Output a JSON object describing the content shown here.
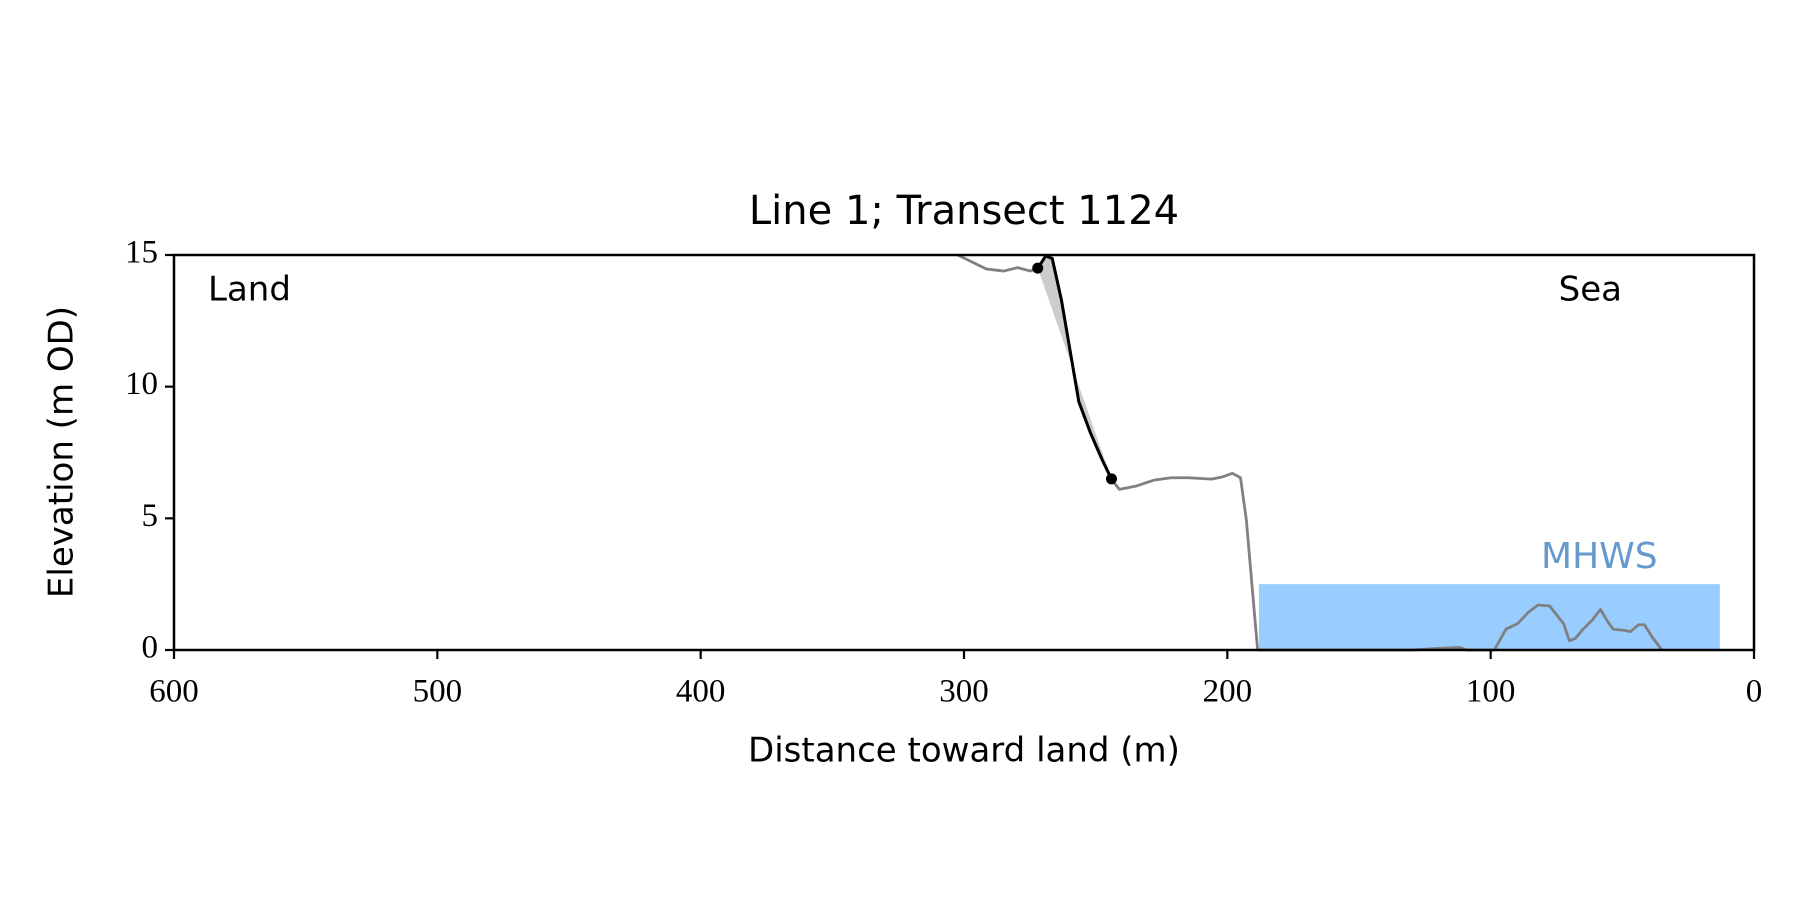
{
  "chart_data": {
    "type": "line",
    "title": "Line 1; Transect 1124",
    "xlabel": "Distance toward land (m)",
    "ylabel": "Elevation (m OD)",
    "xlim": [
      600,
      0
    ],
    "ylim": [
      0,
      15
    ],
    "xticks": [
      600,
      500,
      400,
      300,
      200,
      100,
      0
    ],
    "yticks": [
      0,
      5,
      10,
      15
    ],
    "annotations": [
      {
        "text": "Land"
      },
      {
        "text": "Sea"
      }
    ],
    "mhws": {
      "label": "MHWS",
      "level": 2.5,
      "x_range": [
        188,
        13
      ],
      "color": "#99ccff",
      "label_color": "#6699cc"
    },
    "profile": {
      "color": "#808080",
      "x": [
        302.4,
        291.5,
        284.9,
        279.6,
        274.8,
        271.7,
        269,
        266.5,
        263,
        256.4,
        252,
        247.6,
        244.1,
        241,
        234.5,
        227.9,
        221.3,
        214.8,
        206,
        201.6,
        198.1,
        195,
        192.8,
        188.5,
        130,
        122,
        112,
        109,
        98.6,
        94.2,
        89.8,
        85.5,
        82,
        77.6,
        72.3,
        70.1,
        67.9,
        64.9,
        61.4,
        58.3,
        55.7,
        53.5,
        49.5,
        46.9,
        43.8,
        41.6,
        38.6,
        35
      ],
      "y": [
        15,
        14.47,
        14.39,
        14.52,
        14.39,
        14.52,
        14.96,
        14.87,
        13.29,
        9.43,
        8.25,
        7.24,
        6.49,
        6.1,
        6.23,
        6.45,
        6.54,
        6.54,
        6.49,
        6.58,
        6.71,
        6.54,
        4.96,
        0,
        0,
        0.05,
        0.1,
        0,
        0,
        0.79,
        1.0,
        1.45,
        1.71,
        1.67,
        1.0,
        0.35,
        0.44,
        0.79,
        1.14,
        1.54,
        1.1,
        0.79,
        0.75,
        0.7,
        0.96,
        0.96,
        0.48,
        0
      ]
    },
    "cliff": {
      "color": "#000000",
      "shade": "#cccccc",
      "x": [
        272,
        269,
        266.5,
        263,
        256.4,
        252,
        247.6,
        244
      ],
      "y": [
        14.5,
        14.96,
        14.87,
        13.29,
        9.43,
        8.25,
        7.24,
        6.5
      ]
    },
    "markers": {
      "color": "#000000",
      "x": [
        272,
        244
      ],
      "y": [
        14.5,
        6.5
      ]
    }
  }
}
